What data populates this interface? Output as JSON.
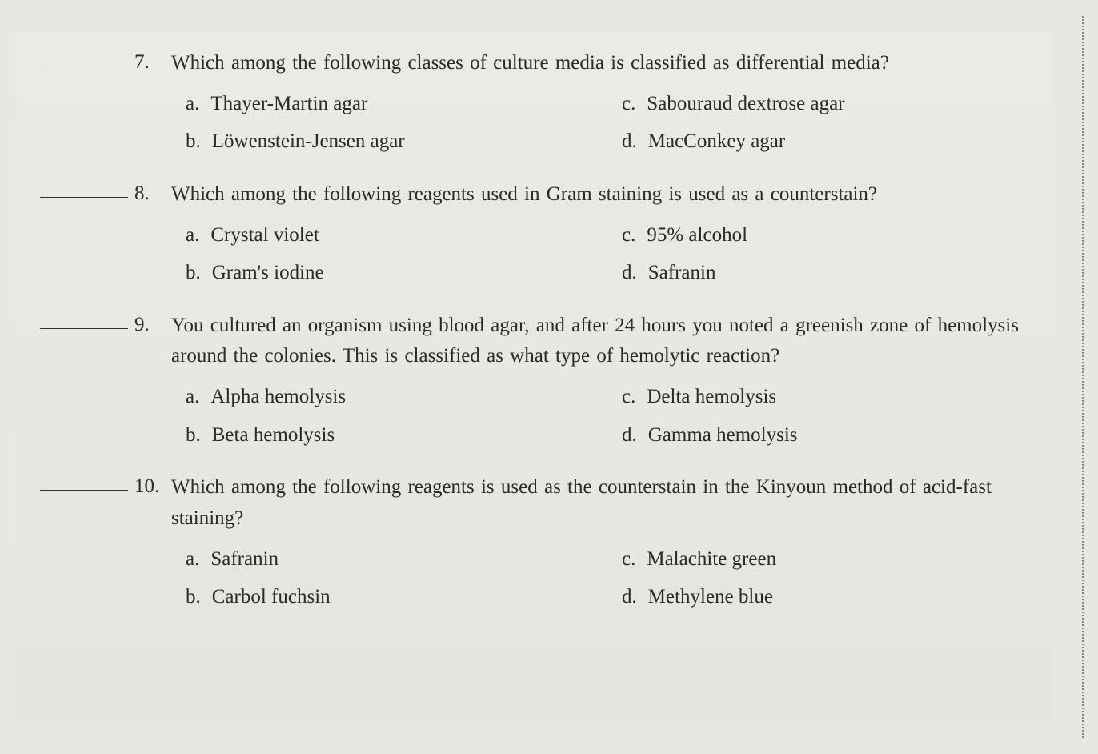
{
  "page": {
    "background_color": "#e8e7e3",
    "text_color": "#2a2a2a",
    "font_family": "Georgia, serif",
    "body_fontsize": 25
  },
  "questions": [
    {
      "number": "7.",
      "text": "Which among the following classes of culture media is classified as differential media?",
      "options": {
        "a": "Thayer-Martin agar",
        "b": "Löwenstein-Jensen agar",
        "c": "Sabouraud dextrose agar",
        "d": "MacConkey agar"
      }
    },
    {
      "number": "8.",
      "text": "Which among the following reagents used in Gram staining is used as a counterstain?",
      "options": {
        "a": "Crystal violet",
        "b": "Gram's iodine",
        "c": "95% alcohol",
        "d": "Safranin"
      }
    },
    {
      "number": "9.",
      "text": "You cultured an organism using blood agar, and after 24 hours you noted a greenish zone of hemolysis around the colonies. This is classified as what type of hemolytic reaction?",
      "options": {
        "a": "Alpha hemolysis",
        "b": "Beta hemolysis",
        "c": "Delta hemolysis",
        "d": "Gamma hemolysis"
      }
    },
    {
      "number": "10.",
      "text": "Which among the following reagents is used as the counterstain in the Kinyoun method of acid-fast staining?",
      "options": {
        "a": "Safranin",
        "b": "Carbol fuchsin",
        "c": "Malachite green",
        "d": "Methylene blue"
      }
    }
  ]
}
